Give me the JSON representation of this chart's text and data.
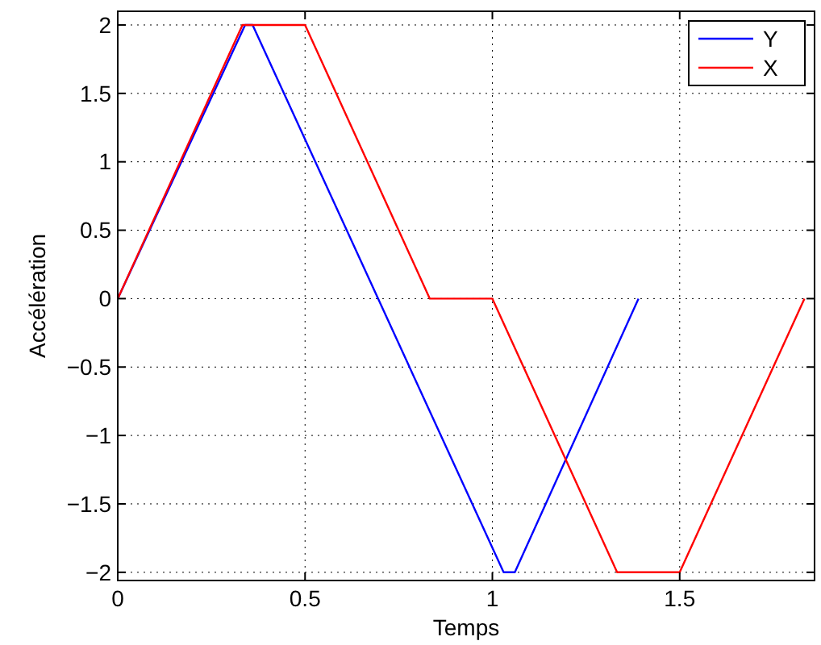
{
  "chart_data": {
    "type": "line",
    "xlabel": "Temps",
    "ylabel": "Accélération",
    "xlim": [
      0,
      1.86
    ],
    "ylim": [
      -2.06,
      2.1
    ],
    "xticks": [
      0,
      0.5,
      1,
      1.5
    ],
    "yticks": [
      {
        "value": -2,
        "label": "−2"
      },
      {
        "value": -1.5,
        "label": "−1.5"
      },
      {
        "value": -1,
        "label": "−1"
      },
      {
        "value": -0.5,
        "label": "−0.5"
      },
      0,
      0.5,
      1,
      1.5,
      2
    ],
    "grid": true,
    "legend": "top right",
    "line_style": "solid",
    "marker": "none",
    "series": [
      {
        "name": "Y",
        "color": "#0000ff",
        "x": [
          0,
          0.34,
          0.36,
          1.03,
          1.06,
          1.39
        ],
        "values": [
          0,
          2,
          2,
          -2,
          -2,
          0
        ]
      },
      {
        "name": "X",
        "color": "#ff0000",
        "x": [
          0,
          0.333,
          0.5,
          0.833,
          1,
          1.333,
          1.5,
          1.833
        ],
        "values": [
          0,
          2,
          2,
          0,
          0,
          -2,
          -2,
          0
        ]
      }
    ]
  }
}
